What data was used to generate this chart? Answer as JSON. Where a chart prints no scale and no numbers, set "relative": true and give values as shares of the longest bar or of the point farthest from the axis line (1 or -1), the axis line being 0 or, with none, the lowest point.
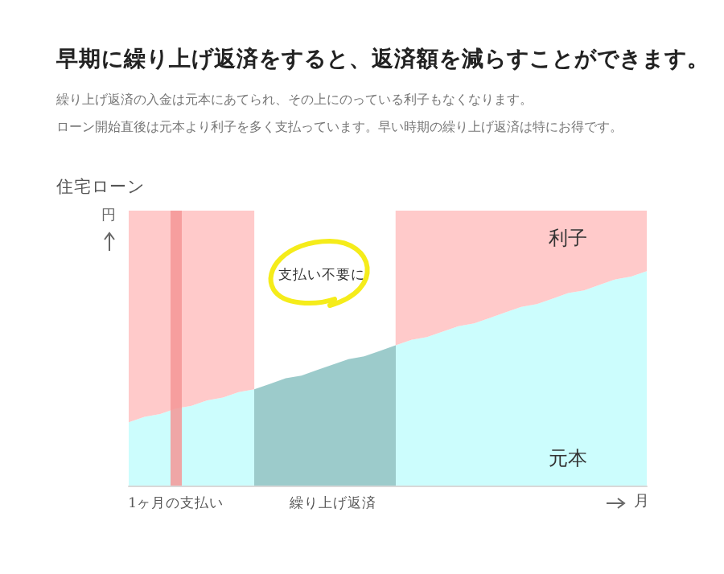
{
  "chart_data": {
    "type": "area",
    "title": "早期に繰り上げ返済をすると、返済額を減らすことができます。",
    "subtitle": "繰り上げ返済の入金は元本にあてられ、その上にのっている利子もなくなります。",
    "annotations": [
      "ローン開始直後は元本より利子を多く支払っています。早い時期の繰り上げ返済は特にお得です。",
      "住宅ローン",
      "支払い不要に"
    ],
    "ylabel": "円",
    "xlabel": "月",
    "relative": true,
    "stacked": true,
    "legend": false,
    "grid": false,
    "categories": [
      null,
      null,
      null,
      "1ヶ月の支払い",
      null,
      null,
      null,
      null,
      null,
      null,
      null,
      null,
      null,
      "繰り上げ返済",
      null,
      null,
      null,
      null,
      null,
      null,
      null,
      null,
      null,
      null,
      null,
      null,
      null,
      null,
      null,
      null,
      null,
      null,
      null,
      null
    ],
    "ref_lines": [
      {
        "axis": "x",
        "value": "1ヶ月の支払い",
        "color": "#f59696"
      }
    ],
    "series": [
      {
        "name": "元本",
        "color": "#ccfdfd",
        "colors": [
          "#ccfdfd",
          "#ccfdfd",
          "#ccfdfd",
          "#ccfdfd",
          "#ccfdfd",
          "#ccfdfd",
          "#ccfdfd",
          "#ccfdfd",
          "#9ccbcb",
          "#9ccbcb",
          "#9ccbcb",
          "#9ccbcb",
          "#9ccbcb",
          "#9ccbcb",
          "#9ccbcb",
          "#9ccbcb",
          "#9ccbcb",
          "#ccfdfd",
          "#ccfdfd",
          "#ccfdfd",
          "#ccfdfd",
          "#ccfdfd",
          "#ccfdfd",
          "#ccfdfd",
          "#ccfdfd",
          "#ccfdfd",
          "#ccfdfd",
          "#ccfdfd",
          "#ccfdfd",
          "#ccfdfd",
          "#ccfdfd",
          "#ccfdfd",
          "#ccfdfd",
          "#ccfdfd"
        ],
        "values": [
          0.23,
          0.25,
          0.26,
          0.28,
          0.29,
          0.31,
          0.32,
          0.34,
          0.35,
          0.37,
          0.39,
          0.4,
          0.42,
          0.44,
          0.46,
          0.47,
          0.49,
          0.51,
          0.53,
          0.54,
          0.56,
          0.58,
          0.59,
          0.61,
          0.63,
          0.65,
          0.66,
          0.68,
          0.7,
          0.71,
          0.73,
          0.75,
          0.76,
          0.78
        ]
      },
      {
        "name": "利子",
        "color": "#ffcaca",
        "values": [
          0.77,
          0.75,
          0.74,
          0.72,
          0.71,
          0.69,
          0.68,
          0.66,
          0.65,
          null,
          null,
          null,
          null,
          null,
          null,
          null,
          null,
          0.49,
          0.47,
          0.46,
          0.44,
          0.42,
          0.41,
          0.39,
          0.37,
          0.35,
          0.34,
          0.32,
          0.3,
          0.29,
          0.27,
          0.25,
          0.24,
          0.22
        ]
      }
    ]
  }
}
